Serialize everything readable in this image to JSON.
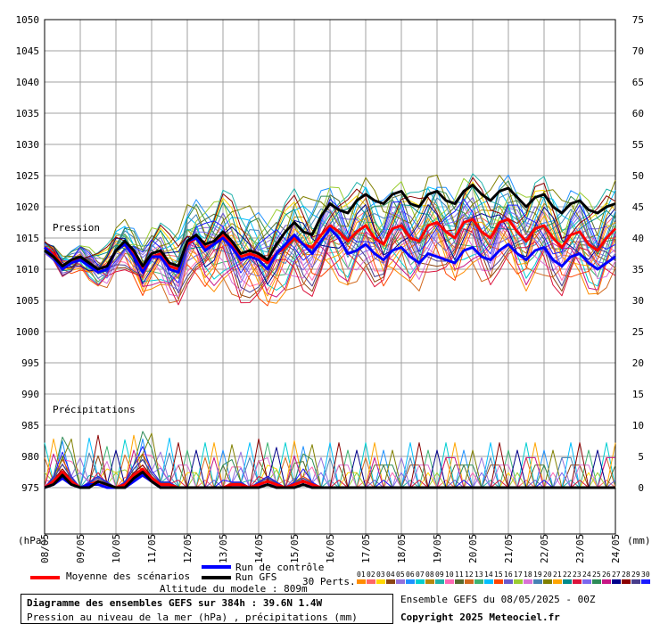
{
  "chart_data": {
    "type": "line",
    "title": "Diagramme des ensembles GEFS sur 384h : 39.6N 1.4W",
    "subtitle": "Pression au niveau de la mer (hPa) , précipitations (mm)",
    "altitude": "Altitude du modele : 809m",
    "run_info": "Ensemble GEFS du 08/05/2025 - 00Z",
    "copyright": "Copyright 2025 Meteociel.fr",
    "left_axis": {
      "unit": "(hPa)",
      "ticks": [
        "1050",
        "1045",
        "1040",
        "1035",
        "1030",
        "1025",
        "1020",
        "1015",
        "1010",
        "1005",
        "1000",
        "995",
        "990",
        "985",
        "980",
        "975"
      ],
      "ylim": [
        975,
        1050
      ]
    },
    "right_axis": {
      "unit": "(mm)",
      "ticks": [
        "75",
        "70",
        "65",
        "60",
        "55",
        "50",
        "45",
        "40",
        "35",
        "30",
        "25",
        "20",
        "15",
        "10",
        "5",
        "0"
      ],
      "ylim": [
        0,
        75
      ]
    },
    "x_ticks": [
      "08/05",
      "09/05",
      "10/05",
      "11/05",
      "12/05",
      "13/05",
      "14/05",
      "15/05",
      "16/05",
      "17/05",
      "18/05",
      "19/05",
      "20/05",
      "21/05",
      "22/05",
      "23/05",
      "24/05"
    ],
    "grid": true,
    "annotations": {
      "pression": "Pression",
      "precip": "Précipitations"
    },
    "legend": {
      "mean": "Moyenne des scénarios",
      "control": "Run de contrôle",
      "gfs": "Run GFS",
      "perts": "30 Perts.",
      "pert_labels": [
        "01",
        "02",
        "03",
        "04",
        "05",
        "06",
        "07",
        "08",
        "09",
        "10",
        "11",
        "12",
        "13",
        "14",
        "15",
        "16",
        "17",
        "18",
        "19",
        "20",
        "21",
        "22",
        "23",
        "24",
        "25",
        "26",
        "27",
        "28",
        "29",
        "30"
      ],
      "pert_colors": [
        "#ff8c00",
        "#ff6666",
        "#ffd700",
        "#8b4513",
        "#9370db",
        "#1e90ff",
        "#00ced1",
        "#b8860b",
        "#20b2aa",
        "#ff69b4",
        "#556b2f",
        "#d2691e",
        "#3cb371",
        "#00bfff",
        "#ff4500",
        "#6a5acd",
        "#9acd32",
        "#da70d6",
        "#4682b4",
        "#808000",
        "#ffa500",
        "#008b8b",
        "#dc143c",
        "#7b68ee",
        "#2e8b57",
        "#c71585",
        "#00008b",
        "#8b0000",
        "#483d8b",
        "#1a1aff"
      ]
    },
    "pressure_series": [
      {
        "name": "Moyenne des scénarios",
        "color": "#ff0000",
        "width": 3,
        "values": [
          1013.5,
          1012.5,
          1010.5,
          1011.0,
          1012.0,
          1011.0,
          1010.0,
          1010.5,
          1013.0,
          1014.0,
          1012.5,
          1010.0,
          1012.0,
          1012.5,
          1010.5,
          1010.0,
          1014.0,
          1015.0,
          1013.5,
          1014.0,
          1015.5,
          1014.0,
          1012.0,
          1012.5,
          1012.0,
          1011.0,
          1012.5,
          1013.5,
          1015.0,
          1014.0,
          1013.5,
          1015.5,
          1017.0,
          1016.0,
          1014.5,
          1016.0,
          1017.0,
          1015.0,
          1014.0,
          1016.5,
          1017.0,
          1015.0,
          1014.5,
          1017.0,
          1017.5,
          1016.0,
          1015.0,
          1017.5,
          1018.0,
          1016.0,
          1015.0,
          1017.5,
          1018.0,
          1016.0,
          1014.5,
          1016.5,
          1017.0,
          1015.0,
          1013.5,
          1015.5,
          1016.0,
          1014.0,
          1013.0,
          1015.0,
          1016.5
        ]
      },
      {
        "name": "Run de contrôle",
        "color": "#0000ff",
        "width": 3,
        "values": [
          1013.5,
          1012.0,
          1010.0,
          1011.0,
          1011.5,
          1010.5,
          1009.5,
          1010.0,
          1013.0,
          1014.0,
          1012.0,
          1009.5,
          1012.0,
          1012.0,
          1010.0,
          1009.5,
          1014.5,
          1015.0,
          1013.0,
          1014.0,
          1015.0,
          1013.5,
          1011.5,
          1012.0,
          1011.5,
          1010.0,
          1012.5,
          1014.0,
          1015.5,
          1014.0,
          1012.5,
          1014.5,
          1016.5,
          1015.0,
          1012.5,
          1013.0,
          1014.0,
          1012.5,
          1011.5,
          1013.0,
          1013.5,
          1012.0,
          1011.0,
          1012.5,
          1012.0,
          1011.5,
          1011.0,
          1013.0,
          1013.5,
          1012.0,
          1011.5,
          1013.0,
          1014.0,
          1012.5,
          1011.5,
          1013.0,
          1013.5,
          1011.5,
          1010.5,
          1012.0,
          1012.5,
          1011.0,
          1010.0,
          1011.0,
          1012.0
        ]
      },
      {
        "name": "Run GFS",
        "color": "#000000",
        "width": 3,
        "values": [
          1013.0,
          1012.0,
          1010.5,
          1011.5,
          1012.0,
          1011.0,
          1010.0,
          1010.5,
          1013.0,
          1014.5,
          1013.0,
          1010.5,
          1012.5,
          1013.0,
          1011.0,
          1010.5,
          1014.5,
          1015.5,
          1014.0,
          1014.5,
          1016.0,
          1014.5,
          1012.5,
          1013.0,
          1012.5,
          1011.5,
          1014.0,
          1016.0,
          1017.5,
          1016.0,
          1015.5,
          1018.5,
          1020.5,
          1019.5,
          1019.0,
          1021.0,
          1022.0,
          1021.0,
          1020.5,
          1022.0,
          1022.5,
          1020.5,
          1020.0,
          1022.0,
          1022.5,
          1021.0,
          1020.5,
          1022.5,
          1023.5,
          1022.0,
          1021.0,
          1022.5,
          1023.0,
          1021.5,
          1020.0,
          1021.5,
          1022.0,
          1020.0,
          1019.0,
          1020.5,
          1021.0,
          1019.5,
          1019.0,
          1020.0,
          1020.5
        ]
      }
    ],
    "precip_series": [
      {
        "name": "Moyenne des scénarios",
        "color": "#ff0000",
        "width": 3,
        "values": [
          0,
          1,
          2.5,
          1,
          0,
          0.5,
          1,
          0.5,
          0,
          0.5,
          2,
          3,
          1.5,
          0.5,
          0.5,
          0,
          0,
          0,
          0,
          0,
          0,
          0.5,
          0.5,
          0,
          0.5,
          1,
          0.5,
          0,
          0.5,
          1,
          0.5,
          0,
          0,
          0,
          0,
          0,
          0,
          0,
          0,
          0,
          0,
          0,
          0,
          0,
          0,
          0,
          0,
          0,
          0,
          0,
          0,
          0,
          0,
          0,
          0,
          0,
          0,
          0,
          0,
          0,
          0,
          0,
          0,
          0,
          0
        ]
      },
      {
        "name": "Run de contrôle",
        "color": "#0000ff",
        "width": 3,
        "values": [
          0,
          0.5,
          1.5,
          0.5,
          0,
          0.5,
          0.5,
          0,
          0,
          0,
          1,
          2,
          1,
          0,
          0,
          0,
          0,
          0,
          0,
          0,
          0,
          0,
          0,
          0,
          0,
          0.5,
          0,
          0,
          0,
          0.5,
          0,
          0,
          0,
          0,
          0,
          0,
          0,
          0,
          0,
          0,
          0,
          0,
          0,
          0,
          0,
          0,
          0,
          0,
          0,
          0,
          0,
          0,
          0,
          0,
          0,
          0,
          0,
          0,
          0,
          0,
          0,
          0,
          0,
          0,
          0
        ]
      },
      {
        "name": "Run GFS",
        "color": "#000000",
        "width": 3,
        "values": [
          0,
          0.5,
          2,
          0.5,
          0,
          0,
          1,
          0.5,
          0,
          0,
          1.5,
          2.5,
          1,
          0,
          0,
          0,
          0,
          0,
          0,
          0,
          0,
          0,
          0,
          0,
          0,
          0.5,
          0,
          0,
          0,
          0.5,
          0,
          0,
          0,
          0,
          0,
          0,
          0,
          0,
          0,
          0,
          0,
          0,
          0,
          0,
          0,
          0,
          0,
          0,
          0,
          0,
          0,
          0,
          0,
          0,
          0,
          0,
          0,
          0,
          0,
          0,
          0,
          0,
          0,
          0,
          0
        ]
      }
    ]
  }
}
